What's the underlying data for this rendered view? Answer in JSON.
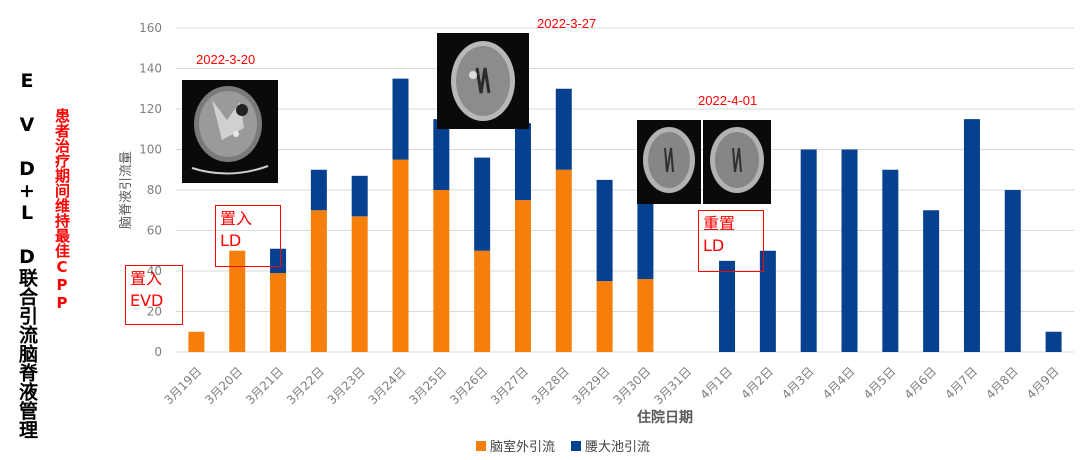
{
  "title_main": "E V D+L D联合引流脑脊液管理",
  "title_sub": "患者治疗期间维持最佳CPP",
  "colors": {
    "evd": "#f57f0a",
    "ld": "#06408f",
    "annotation": "#ff0000",
    "grid": "#d9d9d9",
    "axis_text": "#7f7f7f"
  },
  "scan_dates": [
    "2022-3-20",
    "2022-3-27",
    "2022-4-01"
  ],
  "annotations": {
    "evd": [
      "置入",
      "EVD"
    ],
    "ld": [
      "置入",
      "LD"
    ],
    "reset": [
      "重置",
      "LD"
    ]
  },
  "legend": [
    "脑室外引流",
    "腰大池引流"
  ],
  "chart_data": {
    "type": "bar",
    "stacked": true,
    "xlabel": "住院日期",
    "ylabel": "脑脊液引流量",
    "ylim": [
      0,
      160
    ],
    "yticks": [
      0,
      20,
      40,
      60,
      80,
      100,
      120,
      140,
      160
    ],
    "grid": true,
    "legend_position": "bottom",
    "categories": [
      "3月19日",
      "3月20日",
      "3月21日",
      "3月22日",
      "3月23日",
      "3月24日",
      "3月25日",
      "3月26日",
      "3月27日",
      "3月28日",
      "3月29日",
      "3月30日",
      "3月31日",
      "4月1日",
      "4月2日",
      "4月3日",
      "4月4日",
      "4月5日",
      "4月6日",
      "4月7日",
      "4月8日",
      "4月9日"
    ],
    "series": [
      {
        "name": "脑室外引流",
        "values": [
          10,
          50,
          39,
          70,
          67,
          95,
          80,
          50,
          75,
          90,
          35,
          36,
          0,
          0,
          0,
          0,
          0,
          0,
          0,
          0,
          0,
          0
        ]
      },
      {
        "name": "腰大池引流",
        "values": [
          0,
          0,
          12,
          20,
          20,
          40,
          35,
          46,
          38,
          40,
          50,
          38,
          0,
          45,
          50,
          100,
          100,
          90,
          70,
          115,
          80,
          10
        ]
      }
    ]
  }
}
